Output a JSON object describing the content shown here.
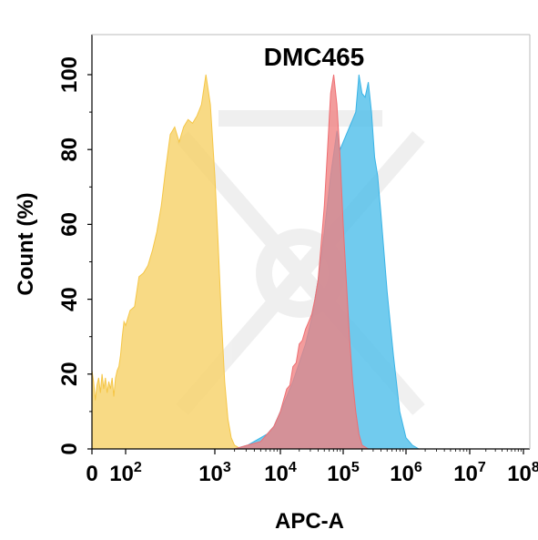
{
  "chart_data": {
    "type": "area",
    "title": "DMC465",
    "xlabel": "APC-A",
    "ylabel": "Count  (%)",
    "x_scale": "biexponential",
    "ylim": [
      0,
      100
    ],
    "y_ticks": [
      {
        "value": 0,
        "label": "0"
      },
      {
        "value": 20,
        "label": "20"
      },
      {
        "value": 40,
        "label": "40"
      },
      {
        "value": 60,
        "label": "60"
      },
      {
        "value": 80,
        "label": "80"
      },
      {
        "value": 100,
        "label": "100"
      }
    ],
    "x_ticks": [
      {
        "value": "0",
        "base": "0",
        "exp": ""
      },
      {
        "value": "10^2",
        "base": "10",
        "exp": "2"
      },
      {
        "value": "10^3",
        "base": "10",
        "exp": "3"
      },
      {
        "value": "10^4",
        "base": "10",
        "exp": "4"
      },
      {
        "value": "10^5",
        "base": "10",
        "exp": "5"
      },
      {
        "value": "10^6",
        "base": "10",
        "exp": "6"
      },
      {
        "value": "10^7",
        "base": "10",
        "exp": "7"
      },
      {
        "value": "10^8",
        "base": "10",
        "exp": "8"
      }
    ],
    "grid": false,
    "series": [
      {
        "color": "#f5c646",
        "fill_color": "#f7d26a",
        "points": [
          [
            0,
            21
          ],
          [
            0.05,
            18
          ],
          [
            0.1,
            13
          ],
          [
            0.15,
            17
          ],
          [
            0.2,
            19
          ],
          [
            0.25,
            15
          ],
          [
            0.3,
            20
          ],
          [
            0.35,
            16
          ],
          [
            0.4,
            19
          ],
          [
            0.45,
            15
          ],
          [
            0.5,
            18
          ],
          [
            0.55,
            16
          ],
          [
            0.6,
            19
          ],
          [
            0.65,
            14
          ],
          [
            0.7,
            19
          ],
          [
            0.75,
            21
          ],
          [
            0.8,
            22
          ],
          [
            0.85,
            25
          ],
          [
            0.9,
            30
          ],
          [
            0.95,
            34
          ],
          [
            1.0,
            33
          ],
          [
            1.05,
            37
          ],
          [
            1.1,
            38
          ],
          [
            1.15,
            46
          ],
          [
            1.2,
            47
          ],
          [
            1.25,
            49
          ],
          [
            1.3,
            53
          ],
          [
            1.35,
            58
          ],
          [
            1.4,
            65
          ],
          [
            1.45,
            75
          ],
          [
            1.5,
            84
          ],
          [
            1.55,
            86
          ],
          [
            1.6,
            82
          ],
          [
            1.65,
            86
          ],
          [
            1.7,
            88
          ],
          [
            1.75,
            87
          ],
          [
            1.8,
            89
          ],
          [
            1.85,
            92
          ],
          [
            1.9,
            100
          ],
          [
            1.95,
            92
          ],
          [
            2.0,
            73
          ],
          [
            2.05,
            55
          ],
          [
            2.1,
            35
          ],
          [
            2.15,
            18
          ],
          [
            2.2,
            8
          ],
          [
            2.25,
            3
          ],
          [
            2.3,
            1
          ],
          [
            2.4,
            0
          ]
        ]
      },
      {
        "color": "#3ab4e6",
        "fill_color": "#52c0ea",
        "points": [
          [
            2.3,
            0
          ],
          [
            2.4,
            0.5
          ],
          [
            2.5,
            1
          ],
          [
            2.6,
            2
          ],
          [
            2.7,
            3
          ],
          [
            2.8,
            4
          ],
          [
            2.9,
            6
          ],
          [
            3.0,
            10
          ],
          [
            3.1,
            14
          ],
          [
            3.2,
            18
          ],
          [
            3.3,
            23
          ],
          [
            3.4,
            28
          ],
          [
            3.5,
            35
          ],
          [
            3.6,
            45
          ],
          [
            3.7,
            58
          ],
          [
            3.8,
            73
          ],
          [
            3.9,
            85
          ],
          [
            3.95,
            80
          ],
          [
            4.0,
            82
          ],
          [
            4.05,
            84
          ],
          [
            4.1,
            86
          ],
          [
            4.15,
            88
          ],
          [
            4.2,
            90
          ],
          [
            4.25,
            100
          ],
          [
            4.3,
            95
          ],
          [
            4.35,
            94
          ],
          [
            4.4,
            98
          ],
          [
            4.45,
            90
          ],
          [
            4.5,
            78
          ],
          [
            4.55,
            73
          ],
          [
            4.6,
            63
          ],
          [
            4.7,
            42
          ],
          [
            4.8,
            25
          ],
          [
            4.9,
            10
          ],
          [
            5.0,
            3
          ],
          [
            5.1,
            1
          ],
          [
            5.2,
            0
          ]
        ]
      },
      {
        "color": "#ee6e72",
        "fill_color": "#f08080",
        "points": [
          [
            2.3,
            0
          ],
          [
            2.5,
            1
          ],
          [
            2.7,
            2
          ],
          [
            2.8,
            4
          ],
          [
            2.9,
            6
          ],
          [
            3.0,
            10
          ],
          [
            3.05,
            13
          ],
          [
            3.1,
            16
          ],
          [
            3.15,
            17
          ],
          [
            3.2,
            22
          ],
          [
            3.25,
            23
          ],
          [
            3.3,
            28
          ],
          [
            3.35,
            29
          ],
          [
            3.4,
            32
          ],
          [
            3.45,
            34
          ],
          [
            3.5,
            36
          ],
          [
            3.55,
            40
          ],
          [
            3.6,
            45
          ],
          [
            3.65,
            55
          ],
          [
            3.7,
            65
          ],
          [
            3.75,
            80
          ],
          [
            3.8,
            95
          ],
          [
            3.85,
            100
          ],
          [
            3.9,
            92
          ],
          [
            3.95,
            78
          ],
          [
            4.0,
            60
          ],
          [
            4.05,
            45
          ],
          [
            4.1,
            30
          ],
          [
            4.15,
            18
          ],
          [
            4.2,
            10
          ],
          [
            4.25,
            4
          ],
          [
            4.3,
            1
          ],
          [
            4.4,
            0
          ]
        ]
      }
    ]
  }
}
